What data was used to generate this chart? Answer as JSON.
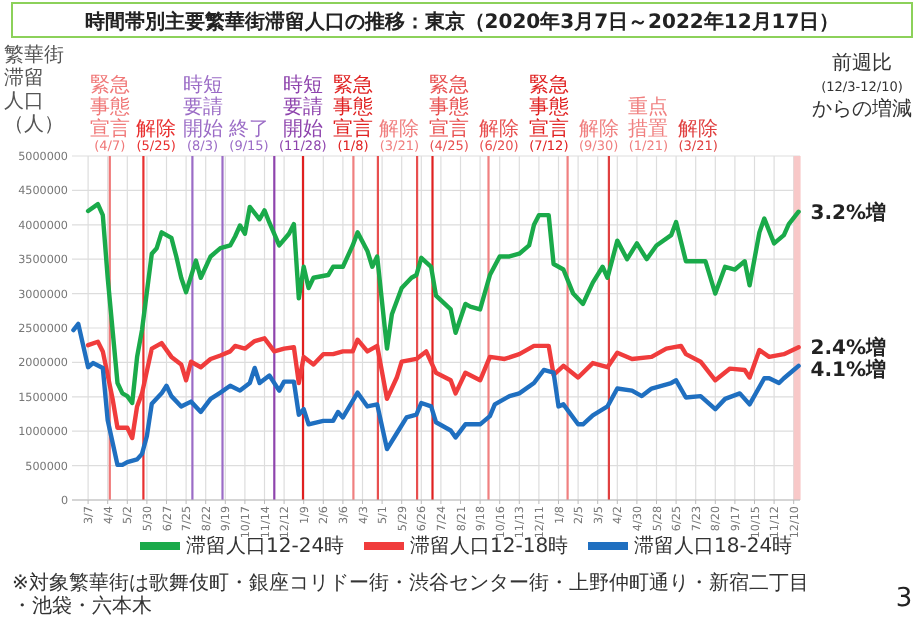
{
  "chart_data": {
    "type": "line",
    "title": "時間帯別主要繁華街滞留人口の推移：東京（2020年3月7日～2022年12月17日）",
    "ylabel": "繁華街滞留人口（人）",
    "xlim": [
      "2020-02-13",
      "2022-12-19"
    ],
    "xticks": [
      {
        "value": "2020-03-07",
        "label": "3/7"
      },
      {
        "value": "2020-04-04",
        "label": "4/4"
      },
      {
        "value": "2020-05-02",
        "label": "5/2"
      },
      {
        "value": "2020-05-30",
        "label": "5/30"
      },
      {
        "value": "2020-06-27",
        "label": "6/27"
      },
      {
        "value": "2020-07-25",
        "label": "7/25"
      },
      {
        "value": "2020-08-22",
        "label": "8/22"
      },
      {
        "value": "2020-09-19",
        "label": "9/19"
      },
      {
        "value": "2020-10-17",
        "label": "10/17"
      },
      {
        "value": "2020-11-14",
        "label": "11/14"
      },
      {
        "value": "2020-12-12",
        "label": "12/12"
      },
      {
        "value": "2021-01-09",
        "label": "1/9"
      },
      {
        "value": "2021-02-06",
        "label": "2/6"
      },
      {
        "value": "2021-03-06",
        "label": "3/6"
      },
      {
        "value": "2021-04-03",
        "label": "4/3"
      },
      {
        "value": "2021-05-01",
        "label": "5/1"
      },
      {
        "value": "2021-05-29",
        "label": "5/29"
      },
      {
        "value": "2021-06-26",
        "label": "6/26"
      },
      {
        "value": "2021-07-24",
        "label": "7/24"
      },
      {
        "value": "2021-08-21",
        "label": "8/21"
      },
      {
        "value": "2021-09-18",
        "label": "9/18"
      },
      {
        "value": "2021-10-16",
        "label": "10/16"
      },
      {
        "value": "2021-11-13",
        "label": "11/13"
      },
      {
        "value": "2021-12-11",
        "label": "12/11"
      },
      {
        "value": "2022-01-08",
        "label": "1/8"
      },
      {
        "value": "2022-02-05",
        "label": "2/5"
      },
      {
        "value": "2022-03-05",
        "label": "3/5"
      },
      {
        "value": "2022-04-02",
        "label": "4/2"
      },
      {
        "value": "2022-04-30",
        "label": "4/30"
      },
      {
        "value": "2022-05-28",
        "label": "5/28"
      },
      {
        "value": "2022-06-25",
        "label": "6/25"
      },
      {
        "value": "2022-07-23",
        "label": "7/23"
      },
      {
        "value": "2022-08-20",
        "label": "8/20"
      },
      {
        "value": "2022-09-17",
        "label": "9/17"
      },
      {
        "value": "2022-10-15",
        "label": "10/15"
      },
      {
        "value": "2022-11-12",
        "label": "11/12"
      },
      {
        "value": "2022-12-10",
        "label": "12/10"
      }
    ],
    "ylim": [
      0,
      5000000
    ],
    "yticks": [
      0,
      500000,
      1000000,
      1500000,
      2000000,
      2500000,
      3000000,
      3500000,
      4000000,
      4500000,
      5000000
    ],
    "grid": true,
    "legend": "bottom",
    "series": [
      {
        "name": "滞留人口12-24時",
        "color": "#1aaa4a",
        "x": [
          "2020-03-07",
          "2020-03-21",
          "2020-03-28",
          "2020-04-04",
          "2020-04-18",
          "2020-04-25",
          "2020-05-02",
          "2020-05-09",
          "2020-05-16",
          "2020-05-23",
          "2020-06-06",
          "2020-06-13",
          "2020-06-20",
          "2020-07-04",
          "2020-07-11",
          "2020-07-18",
          "2020-07-25",
          "2020-08-08",
          "2020-08-15",
          "2020-08-29",
          "2020-09-12",
          "2020-09-26",
          "2020-10-03",
          "2020-10-10",
          "2020-10-17",
          "2020-10-24",
          "2020-11-07",
          "2020-11-14",
          "2020-11-21",
          "2020-12-05",
          "2020-12-19",
          "2020-12-26",
          "2021-01-02",
          "2021-01-09",
          "2021-01-16",
          "2021-01-23",
          "2021-02-13",
          "2021-02-20",
          "2021-03-06",
          "2021-03-20",
          "2021-03-27",
          "2021-04-10",
          "2021-04-17",
          "2021-04-24",
          "2021-05-08",
          "2021-05-15",
          "2021-05-29",
          "2021-06-12",
          "2021-06-19",
          "2021-06-26",
          "2021-07-10",
          "2021-07-17",
          "2021-08-07",
          "2021-08-14",
          "2021-08-28",
          "2021-09-04",
          "2021-09-18",
          "2021-10-02",
          "2021-10-16",
          "2021-10-30",
          "2021-11-13",
          "2021-11-27",
          "2021-12-04",
          "2021-12-11",
          "2021-12-25",
          "2022-01-01",
          "2022-01-15",
          "2022-01-29",
          "2022-02-12",
          "2022-02-26",
          "2022-03-12",
          "2022-03-19",
          "2022-04-02",
          "2022-04-16",
          "2022-04-30",
          "2022-05-14",
          "2022-05-28",
          "2022-06-18",
          "2022-06-25",
          "2022-07-09",
          "2022-08-06",
          "2022-08-20",
          "2022-09-03",
          "2022-09-17",
          "2022-10-01",
          "2022-10-08",
          "2022-10-22",
          "2022-10-29",
          "2022-11-12",
          "2022-11-26",
          "2022-12-03",
          "2022-12-17"
        ],
        "values": [
          4200000,
          4300000,
          4140000,
          3230000,
          1700000,
          1550000,
          1510000,
          1410000,
          2080000,
          2470000,
          3580000,
          3660000,
          3890000,
          3810000,
          3540000,
          3230000,
          3020000,
          3480000,
          3230000,
          3540000,
          3660000,
          3700000,
          3830000,
          3990000,
          3870000,
          4260000,
          4080000,
          4210000,
          4030000,
          3700000,
          3870000,
          4010000,
          2930000,
          3390000,
          3080000,
          3230000,
          3270000,
          3390000,
          3390000,
          3700000,
          3890000,
          3620000,
          3390000,
          3540000,
          2200000,
          2700000,
          3080000,
          3230000,
          3270000,
          3520000,
          3390000,
          2970000,
          2770000,
          2430000,
          2850000,
          2810000,
          2770000,
          3270000,
          3540000,
          3540000,
          3580000,
          3700000,
          4000000,
          4140000,
          4140000,
          3430000,
          3350000,
          3000000,
          2850000,
          3160000,
          3390000,
          3230000,
          3770000,
          3500000,
          3730000,
          3500000,
          3700000,
          3850000,
          4040000,
          3470000,
          3470000,
          3000000,
          3390000,
          3350000,
          3470000,
          3120000,
          3890000,
          4090000,
          3730000,
          3850000,
          4010000,
          4190000
        ]
      },
      {
        "name": "滞留人口12-18時",
        "color": "#f03c3c",
        "x": [
          "2020-03-07",
          "2020-03-21",
          "2020-03-28",
          "2020-04-11",
          "2020-04-18",
          "2020-05-02",
          "2020-05-09",
          "2020-05-16",
          "2020-05-23",
          "2020-06-06",
          "2020-06-20",
          "2020-07-04",
          "2020-07-18",
          "2020-07-25",
          "2020-08-01",
          "2020-08-15",
          "2020-08-29",
          "2020-09-12",
          "2020-09-26",
          "2020-10-03",
          "2020-10-17",
          "2020-10-31",
          "2020-11-14",
          "2020-11-28",
          "2020-12-12",
          "2020-12-26",
          "2021-01-02",
          "2021-01-09",
          "2021-01-23",
          "2021-02-06",
          "2021-02-20",
          "2021-03-06",
          "2021-03-20",
          "2021-03-27",
          "2021-04-10",
          "2021-04-24",
          "2021-05-08",
          "2021-05-22",
          "2021-05-29",
          "2021-06-19",
          "2021-07-03",
          "2021-07-17",
          "2021-08-07",
          "2021-08-14",
          "2021-08-28",
          "2021-09-18",
          "2021-10-02",
          "2021-10-23",
          "2021-11-13",
          "2021-12-04",
          "2021-12-25",
          "2022-01-01",
          "2022-01-15",
          "2022-02-05",
          "2022-02-26",
          "2022-03-19",
          "2022-04-02",
          "2022-04-23",
          "2022-05-21",
          "2022-06-11",
          "2022-07-02",
          "2022-07-09",
          "2022-07-30",
          "2022-08-20",
          "2022-09-10",
          "2022-10-01",
          "2022-10-08",
          "2022-10-22",
          "2022-11-05",
          "2022-11-26",
          "2022-12-17"
        ],
        "values": [
          2250000,
          2300000,
          2160000,
          1470000,
          1050000,
          1050000,
          900000,
          1360000,
          1550000,
          2200000,
          2280000,
          2080000,
          1970000,
          1740000,
          2010000,
          1930000,
          2050000,
          2100000,
          2160000,
          2240000,
          2200000,
          2310000,
          2350000,
          2160000,
          2200000,
          2220000,
          1700000,
          2080000,
          1970000,
          2120000,
          2120000,
          2160000,
          2160000,
          2330000,
          2160000,
          2240000,
          1470000,
          1780000,
          2010000,
          2050000,
          2160000,
          1850000,
          1740000,
          1550000,
          1850000,
          1740000,
          2080000,
          2050000,
          2120000,
          2240000,
          2240000,
          1820000,
          1950000,
          1780000,
          1990000,
          1930000,
          2140000,
          2050000,
          2080000,
          2200000,
          2240000,
          2120000,
          2010000,
          1740000,
          1910000,
          1890000,
          1780000,
          2180000,
          2080000,
          2120000,
          2220000
        ]
      },
      {
        "name": "滞留人口18-24時",
        "color": "#1f6fc0",
        "x": [
          "2020-02-15",
          "2020-02-22",
          "2020-03-07",
          "2020-03-14",
          "2020-03-28",
          "2020-04-04",
          "2020-04-18",
          "2020-04-25",
          "2020-05-02",
          "2020-05-16",
          "2020-05-23",
          "2020-05-30",
          "2020-06-06",
          "2020-06-20",
          "2020-06-27",
          "2020-07-04",
          "2020-07-18",
          "2020-08-01",
          "2020-08-15",
          "2020-08-29",
          "2020-09-12",
          "2020-09-26",
          "2020-10-10",
          "2020-10-24",
          "2020-10-31",
          "2020-11-07",
          "2020-11-21",
          "2020-12-05",
          "2020-12-12",
          "2020-12-26",
          "2021-01-02",
          "2021-01-09",
          "2021-01-16",
          "2021-02-06",
          "2021-02-20",
          "2021-02-27",
          "2021-03-06",
          "2021-03-27",
          "2021-04-10",
          "2021-04-24",
          "2021-05-08",
          "2021-05-22",
          "2021-06-05",
          "2021-06-19",
          "2021-06-26",
          "2021-07-10",
          "2021-07-17",
          "2021-08-07",
          "2021-08-14",
          "2021-08-28",
          "2021-09-18",
          "2021-10-02",
          "2021-10-09",
          "2021-10-30",
          "2021-11-13",
          "2021-12-04",
          "2021-12-18",
          "2022-01-01",
          "2022-01-08",
          "2022-01-15",
          "2022-02-05",
          "2022-02-12",
          "2022-02-26",
          "2022-03-19",
          "2022-04-02",
          "2022-04-23",
          "2022-05-07",
          "2022-05-21",
          "2022-06-18",
          "2022-06-25",
          "2022-07-09",
          "2022-07-30",
          "2022-08-20",
          "2022-09-03",
          "2022-09-24",
          "2022-10-08",
          "2022-10-29",
          "2022-11-05",
          "2022-11-19",
          "2022-11-26",
          "2022-12-10",
          "2022-12-17"
        ],
        "values": [
          2470000,
          2560000,
          1930000,
          1990000,
          1920000,
          1160000,
          510000,
          510000,
          550000,
          590000,
          670000,
          930000,
          1400000,
          1550000,
          1660000,
          1510000,
          1360000,
          1430000,
          1280000,
          1470000,
          1560000,
          1660000,
          1590000,
          1700000,
          1920000,
          1700000,
          1810000,
          1590000,
          1720000,
          1720000,
          1240000,
          1320000,
          1100000,
          1150000,
          1150000,
          1280000,
          1200000,
          1560000,
          1360000,
          1390000,
          740000,
          970000,
          1200000,
          1240000,
          1410000,
          1360000,
          1130000,
          1010000,
          910000,
          1100000,
          1100000,
          1220000,
          1390000,
          1510000,
          1550000,
          1700000,
          1890000,
          1850000,
          1360000,
          1390000,
          1100000,
          1100000,
          1230000,
          1360000,
          1620000,
          1590000,
          1510000,
          1620000,
          1700000,
          1740000,
          1490000,
          1510000,
          1320000,
          1470000,
          1550000,
          1390000,
          1770000,
          1770000,
          1700000,
          1770000,
          1890000,
          1950000
        ]
      }
    ],
    "ref_lines": [
      {
        "axis": "x",
        "value": "2020-04-07",
        "label": "緊急事態宣言(4/7)",
        "color": "#f07878"
      },
      {
        "axis": "x",
        "value": "2020-05-25",
        "label": "解除(5/25)",
        "color": "#e83030"
      },
      {
        "axis": "x",
        "value": "2020-08-03",
        "label": "時短要請開始(8/3)",
        "color": "#9b6cc6"
      },
      {
        "axis": "x",
        "value": "2020-09-15",
        "label": "終了(9/15)",
        "color": "#9b6cc6"
      },
      {
        "axis": "x",
        "value": "2020-11-28",
        "label": "時短要請開始(11/28)",
        "color": "#8e44ad"
      },
      {
        "axis": "x",
        "value": "2021-01-08",
        "label": "緊急事態宣言(1/8)",
        "color": "#e02020"
      },
      {
        "axis": "x",
        "value": "2021-03-21",
        "label": "解除(3/21)",
        "color": "#f08080"
      },
      {
        "axis": "x",
        "value": "2021-04-25",
        "label": "緊急事態宣言(4/25)",
        "color": "#e85050"
      },
      {
        "axis": "x",
        "value": "2021-06-20",
        "label": "解除(6/20)",
        "color": "#e85050"
      },
      {
        "axis": "x",
        "value": "2021-07-12",
        "label": "緊急事態宣言(7/12)",
        "color": "#e02020"
      },
      {
        "axis": "x",
        "value": "2021-09-30",
        "label": "解除(9/30)",
        "color": "#f08080"
      },
      {
        "axis": "x",
        "value": "2022-01-21",
        "label": "重点措置(1/21)",
        "color": "#f08080"
      },
      {
        "axis": "x",
        "value": "2022-03-21",
        "label": "解除(3/21)",
        "color": "#e04040"
      }
    ],
    "bands": [
      {
        "axis": "x",
        "from": "2022-12-10",
        "to": "2022-12-17",
        "color": "#f8c8c8"
      }
    ],
    "annotations": [
      {
        "text": "3.2%増",
        "x": "2022-12-17",
        "y": 4190000
      },
      {
        "text": "2.4%増",
        "x": "2022-12-17",
        "y": 2220000
      },
      {
        "text": "4.1%増",
        "x": "2022-12-17",
        "y": 1950000
      },
      "前週比",
      "(12/3-12/10)からの増減",
      "※対象繁華街は歌舞伎町・銀座コリドー街・渋谷センター街・上野仲町通り・新宿二丁目・池袋・六本木",
      "3"
    ]
  }
}
